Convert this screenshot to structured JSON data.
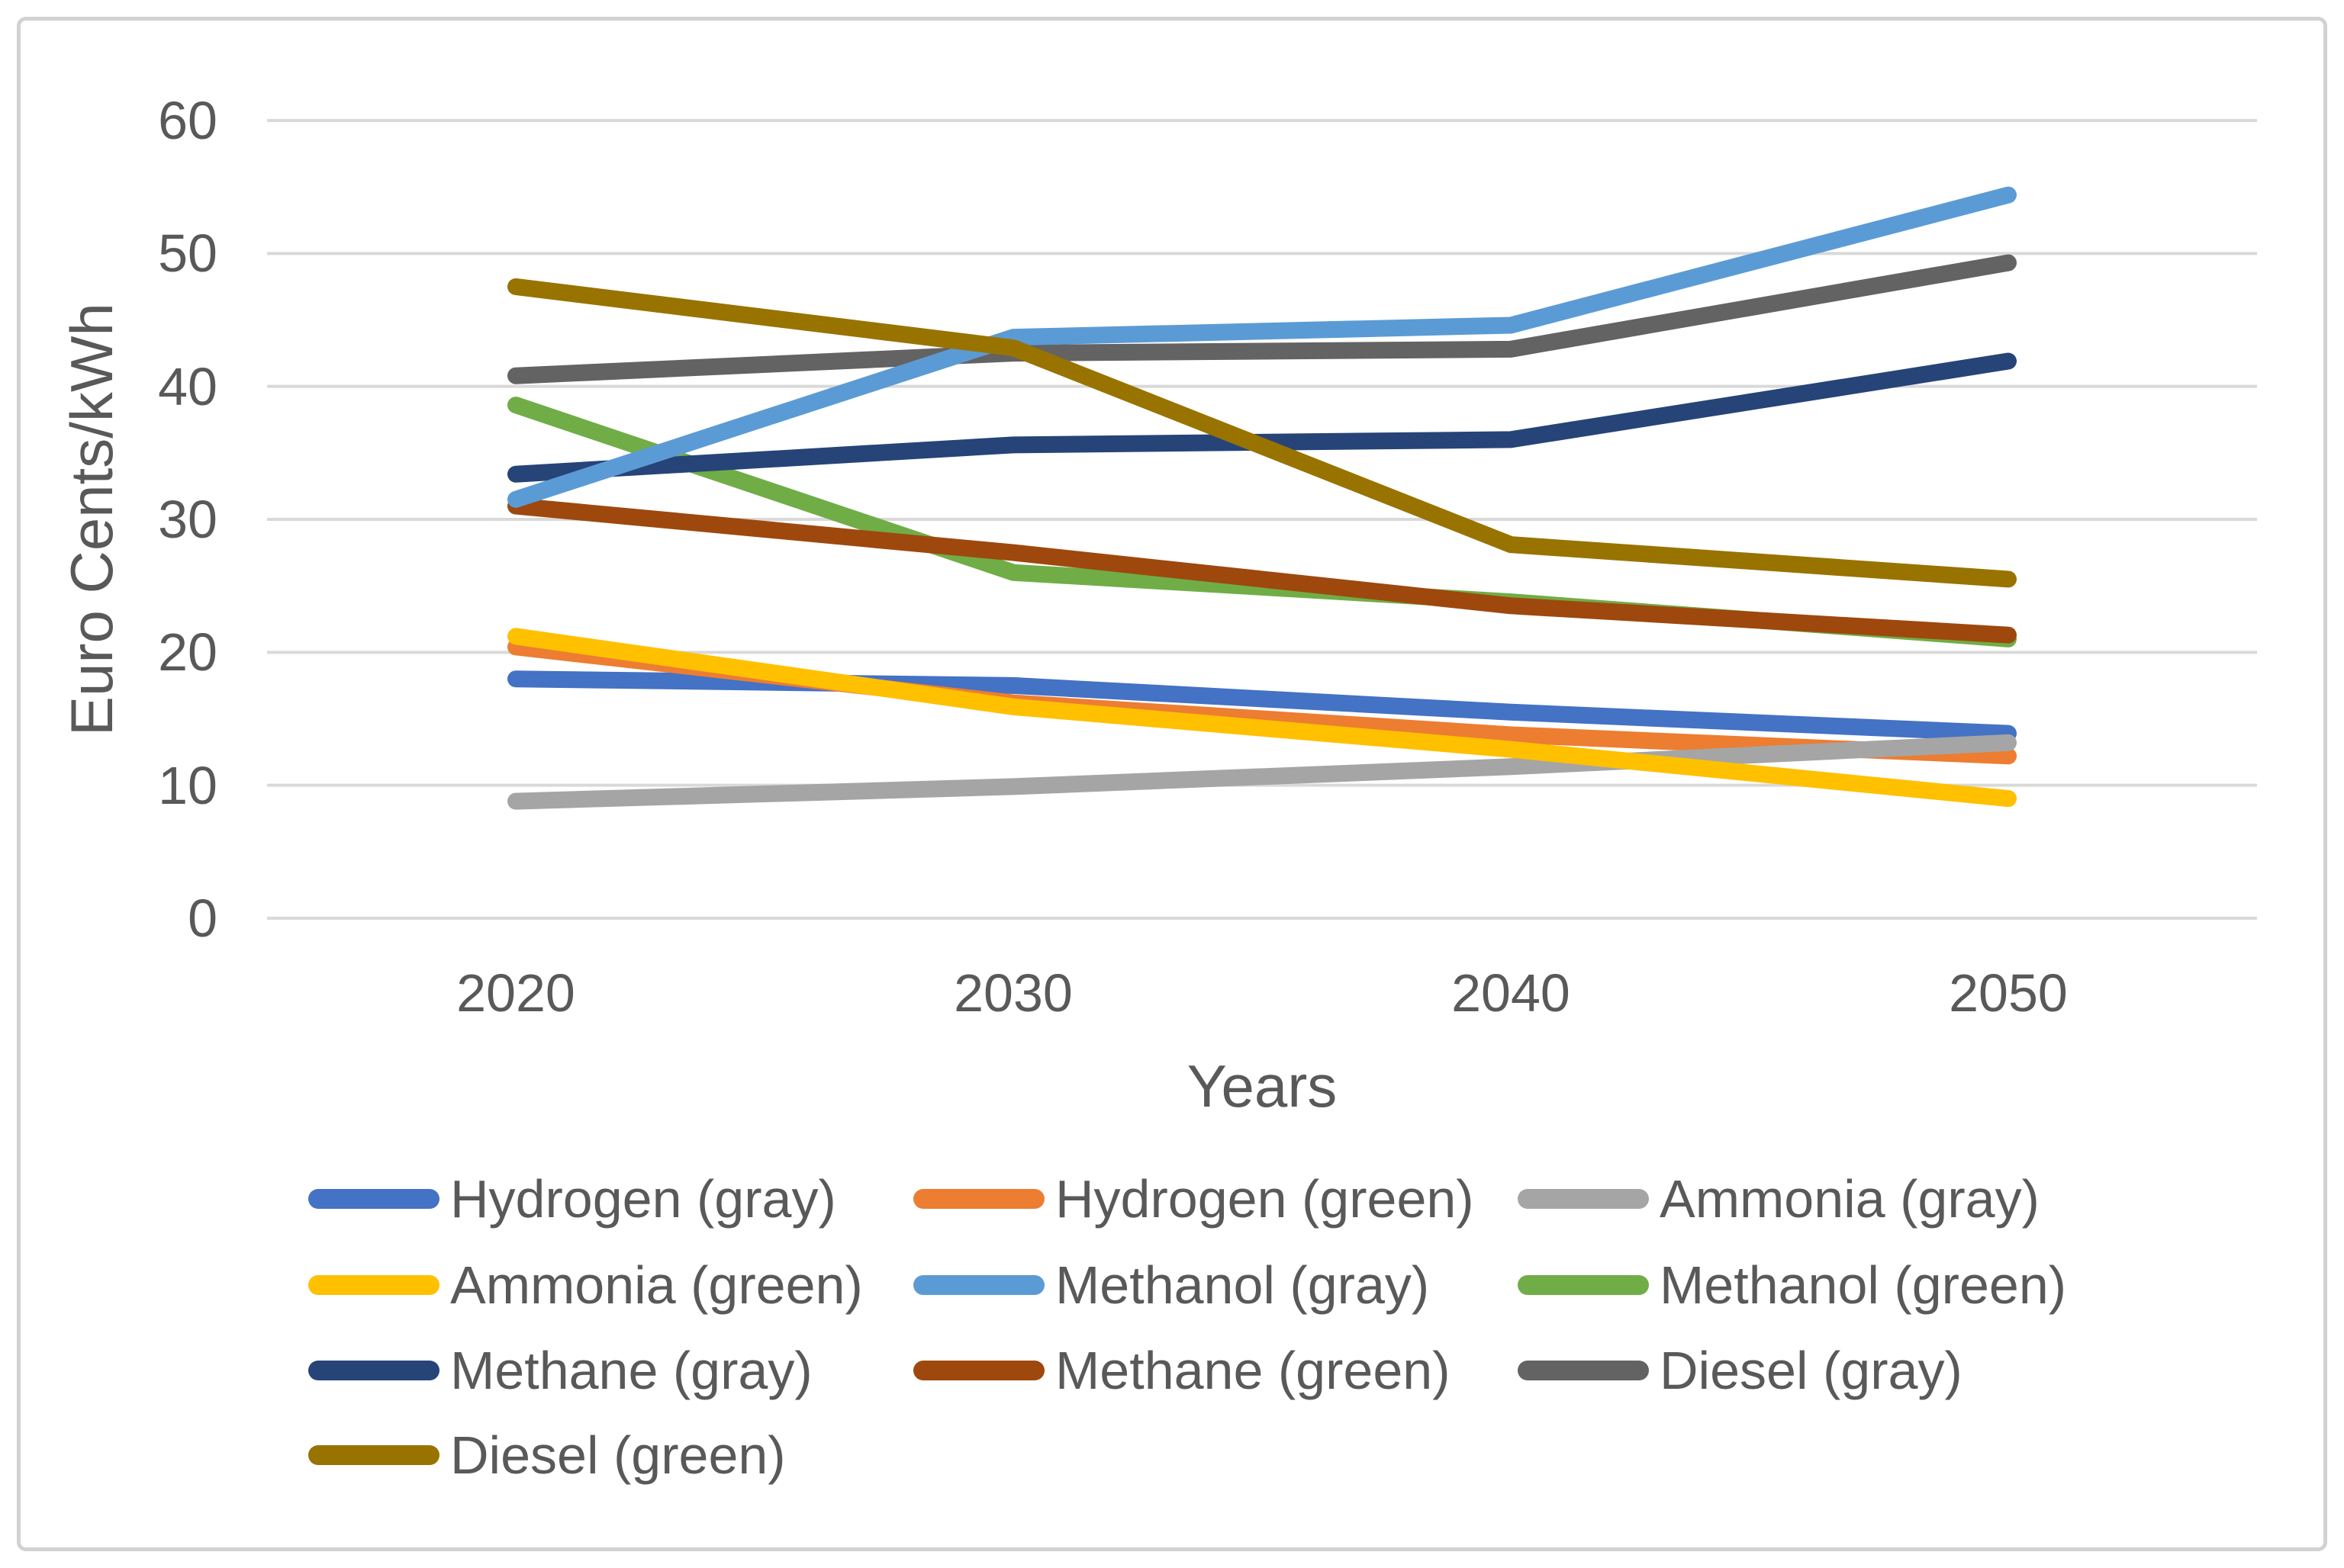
{
  "figure": {
    "background_color": "#FFFFFF",
    "border_color": "#D2D2D2"
  },
  "chart_data": {
    "type": "line",
    "title": "",
    "xlabel": "Years",
    "ylabel": "Euro Cents/kWh",
    "categories": [
      "2020",
      "2030",
      "2040",
      "2050"
    ],
    "y_ticks": [
      0,
      10,
      20,
      30,
      40,
      50,
      60
    ],
    "ylim": [
      0,
      60
    ],
    "grid": "horizontal",
    "gridline_color": "#D9D9D9",
    "axis_text_color": "#595959",
    "legend_position": "bottom",
    "series": [
      {
        "name": "Hydrogen (gray)",
        "color": "#4472C4",
        "values": [
          18.0,
          17.5,
          15.5,
          13.9
        ]
      },
      {
        "name": "Hydrogen (green)",
        "color": "#ED7D31",
        "values": [
          20.4,
          16.2,
          13.8,
          12.2
        ]
      },
      {
        "name": "Ammonia (gray)",
        "color": "#A5A5A5",
        "values": [
          8.8,
          9.9,
          11.4,
          13.2
        ]
      },
      {
        "name": "Ammonia (green)",
        "color": "#FFC000",
        "values": [
          21.2,
          15.9,
          12.7,
          9.0
        ]
      },
      {
        "name": "Methanol (gray)",
        "color": "#5B9BD5",
        "values": [
          31.5,
          43.7,
          44.6,
          54.4
        ]
      },
      {
        "name": "Methanol (green)",
        "color": "#70AD47",
        "values": [
          38.6,
          26.0,
          23.8,
          21.0
        ]
      },
      {
        "name": "Methane (gray)",
        "color": "#264478",
        "values": [
          33.4,
          35.6,
          36.0,
          41.9
        ]
      },
      {
        "name": "Methane (green)",
        "color": "#9E480E",
        "values": [
          31.0,
          27.5,
          23.5,
          21.3
        ]
      },
      {
        "name": "Diesel (gray)",
        "color": "#636363",
        "values": [
          40.8,
          42.5,
          42.8,
          49.3
        ]
      },
      {
        "name": "Diesel (green)",
        "color": "#997300",
        "values": [
          47.5,
          42.9,
          28.1,
          25.5
        ]
      }
    ]
  }
}
